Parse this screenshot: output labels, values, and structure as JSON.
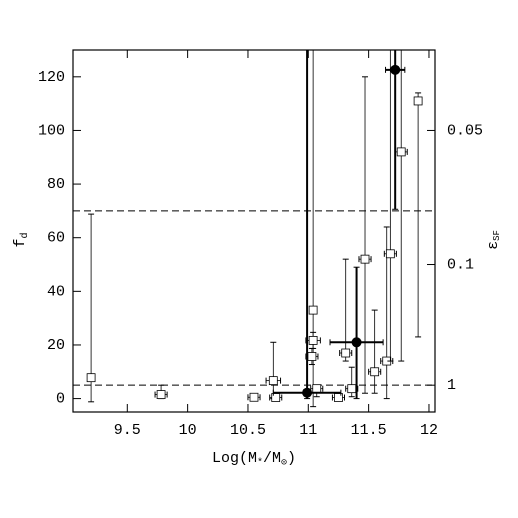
{
  "chart_data": {
    "type": "scatter",
    "xlabel": [
      "Log(M",
      "*",
      "/M",
      "⊙",
      ")"
    ],
    "ylabel": [
      "f",
      "d"
    ],
    "y2label": [
      "ε",
      "SF"
    ],
    "xlim": [
      9.05,
      12.05
    ],
    "ylim": [
      -5,
      130
    ],
    "xticks": [
      9.5,
      10,
      10.5,
      11,
      11.5,
      12
    ],
    "yticks": [
      0,
      20,
      40,
      60,
      80,
      100,
      120
    ],
    "y2_scale": "reciprocal",
    "y2lim": [
      -1,
      0.03846
    ],
    "y2ticks": [
      0.05,
      0.1,
      1
    ],
    "hlines": [
      5,
      70
    ],
    "series": [
      {
        "marker": "open-square",
        "color": "#000000",
        "x": [
          9.2,
          9.78,
          10.55,
          10.71,
          10.73,
          11.04,
          11.04,
          11.03,
          11.07,
          11.25,
          11.31,
          11.36,
          11.47,
          11.55,
          11.65,
          11.68,
          11.77,
          11.91
        ],
        "values": [
          7.8,
          1.5,
          0.5,
          6.7,
          0.4,
          33,
          21.7,
          15.7,
          3.7,
          0.4,
          17,
          3.7,
          52,
          10,
          14,
          54,
          92,
          111
        ],
        "xerr": [
          0.02,
          0.05,
          0.05,
          0.06,
          0.05,
          0.03,
          0.06,
          0.05,
          0.05,
          0.05,
          0.05,
          0.05,
          0.05,
          0.05,
          0.05,
          0.05,
          0.05,
          0.03
        ],
        "yerr_low": [
          9,
          1.5,
          0.5,
          6.7,
          0.4,
          36,
          3,
          3,
          3,
          0.4,
          3,
          3,
          50,
          8,
          14,
          40,
          78,
          88
        ],
        "yerr_high": [
          61,
          3.5,
          1,
          14.3,
          1,
          100,
          3,
          3,
          1,
          1,
          35,
          8,
          68,
          23,
          50,
          80,
          40,
          3
        ]
      },
      {
        "marker": "filled-circle",
        "color": "#000000",
        "x": [
          10.99,
          11.4,
          11.72
        ],
        "values": [
          2.2,
          21,
          122.6
        ],
        "xerr": [
          0.28,
          0.22,
          0.08
        ],
        "yerr_low": [
          2.2,
          21,
          52
        ],
        "yerr_high": [
          130,
          28,
          10
        ]
      }
    ]
  }
}
